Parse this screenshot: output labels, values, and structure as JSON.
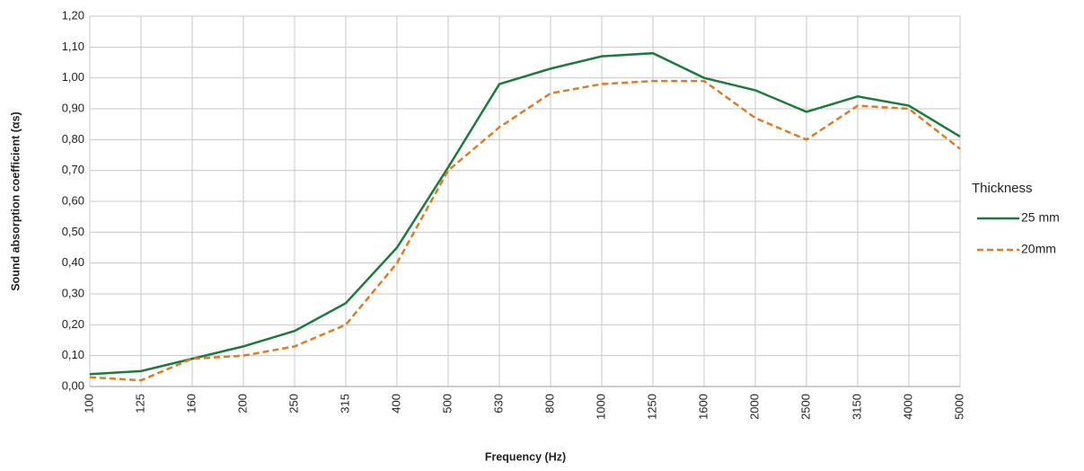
{
  "chart_data": {
    "type": "line",
    "x_label": "Frequency (Hz)",
    "y_label": "Sound  absorption coefficient (αs)",
    "legend_title": "Thickness",
    "legend_position": "right",
    "grid": true,
    "categories": [
      "100",
      "125",
      "160",
      "200",
      "250",
      "315",
      "400",
      "500",
      "630",
      "800",
      "1000",
      "1250",
      "1600",
      "2000",
      "2500",
      "3150",
      "4000",
      "5000"
    ],
    "series": [
      {
        "name": "25 mm",
        "color": "#1e7a3c",
        "dashed": false,
        "values": [
          0.04,
          0.05,
          0.09,
          0.13,
          0.18,
          0.27,
          0.45,
          0.71,
          0.98,
          1.03,
          1.07,
          1.08,
          1.0,
          0.96,
          0.89,
          0.94,
          0.91,
          0.81
        ]
      },
      {
        "name": "20mm",
        "color": "#e07b25",
        "dashed": true,
        "values": [
          0.03,
          0.02,
          0.09,
          0.1,
          0.13,
          0.2,
          0.4,
          0.7,
          0.84,
          0.95,
          0.98,
          0.99,
          0.99,
          0.87,
          0.8,
          0.91,
          0.9,
          0.77
        ]
      }
    ],
    "ylim": [
      0,
      1.2
    ],
    "yticks": [
      {
        "value": 0,
        "label": "0,00"
      },
      {
        "value": 0.1,
        "label": "0,10"
      },
      {
        "value": 0.2,
        "label": "0,20"
      },
      {
        "value": 0.3,
        "label": "0,30"
      },
      {
        "value": 0.4,
        "label": "0,40"
      },
      {
        "value": 0.5,
        "label": "0,50"
      },
      {
        "value": 0.6,
        "label": "0,60"
      },
      {
        "value": 0.7,
        "label": "0,70"
      },
      {
        "value": 0.8,
        "label": "0,80"
      },
      {
        "value": 0.9,
        "label": "0,90"
      },
      {
        "value": 1.0,
        "label": "1,00"
      },
      {
        "value": 1.1,
        "label": "1,10"
      },
      {
        "value": 1.2,
        "label": "1,20"
      }
    ]
  }
}
